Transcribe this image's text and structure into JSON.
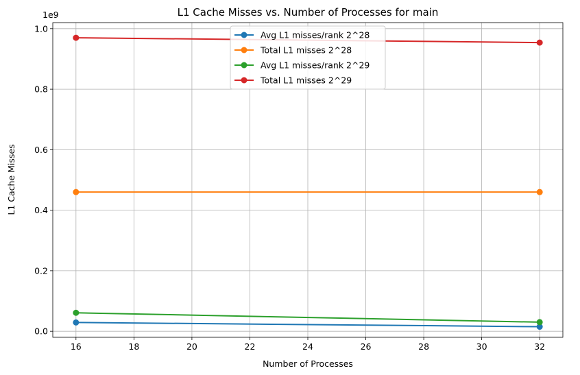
{
  "chart_data": {
    "type": "line",
    "title": "L1 Cache Misses vs. Number of Processes for main",
    "xlabel": "Number of Processes",
    "ylabel": "L1 Cache Misses",
    "y_offset_label": "1e9",
    "x": [
      16,
      32
    ],
    "xlim": [
      15.2,
      32.8
    ],
    "ylim": [
      -0.02,
      1.02
    ],
    "xticks": [
      16,
      18,
      20,
      22,
      24,
      26,
      28,
      30,
      32
    ],
    "yticks": [
      0.0,
      0.2,
      0.4,
      0.6,
      0.8,
      1.0
    ],
    "ytick_labels": [
      "0.0",
      "0.2",
      "0.4",
      "0.6",
      "0.8",
      "1.0"
    ],
    "grid": true,
    "legend_position": "upper center",
    "series": [
      {
        "name": "Avg L1 misses/rank 2^28",
        "color": "#1f77b4",
        "values": [
          0.029,
          0.015
        ]
      },
      {
        "name": "Total L1 misses 2^28",
        "color": "#ff7f0e",
        "values": [
          0.46,
          0.46
        ]
      },
      {
        "name": "Avg L1 misses/rank 2^29",
        "color": "#2ca02c",
        "values": [
          0.061,
          0.03
        ]
      },
      {
        "name": "Total L1 misses 2^29",
        "color": "#d62728",
        "values": [
          0.97,
          0.954
        ]
      }
    ]
  }
}
